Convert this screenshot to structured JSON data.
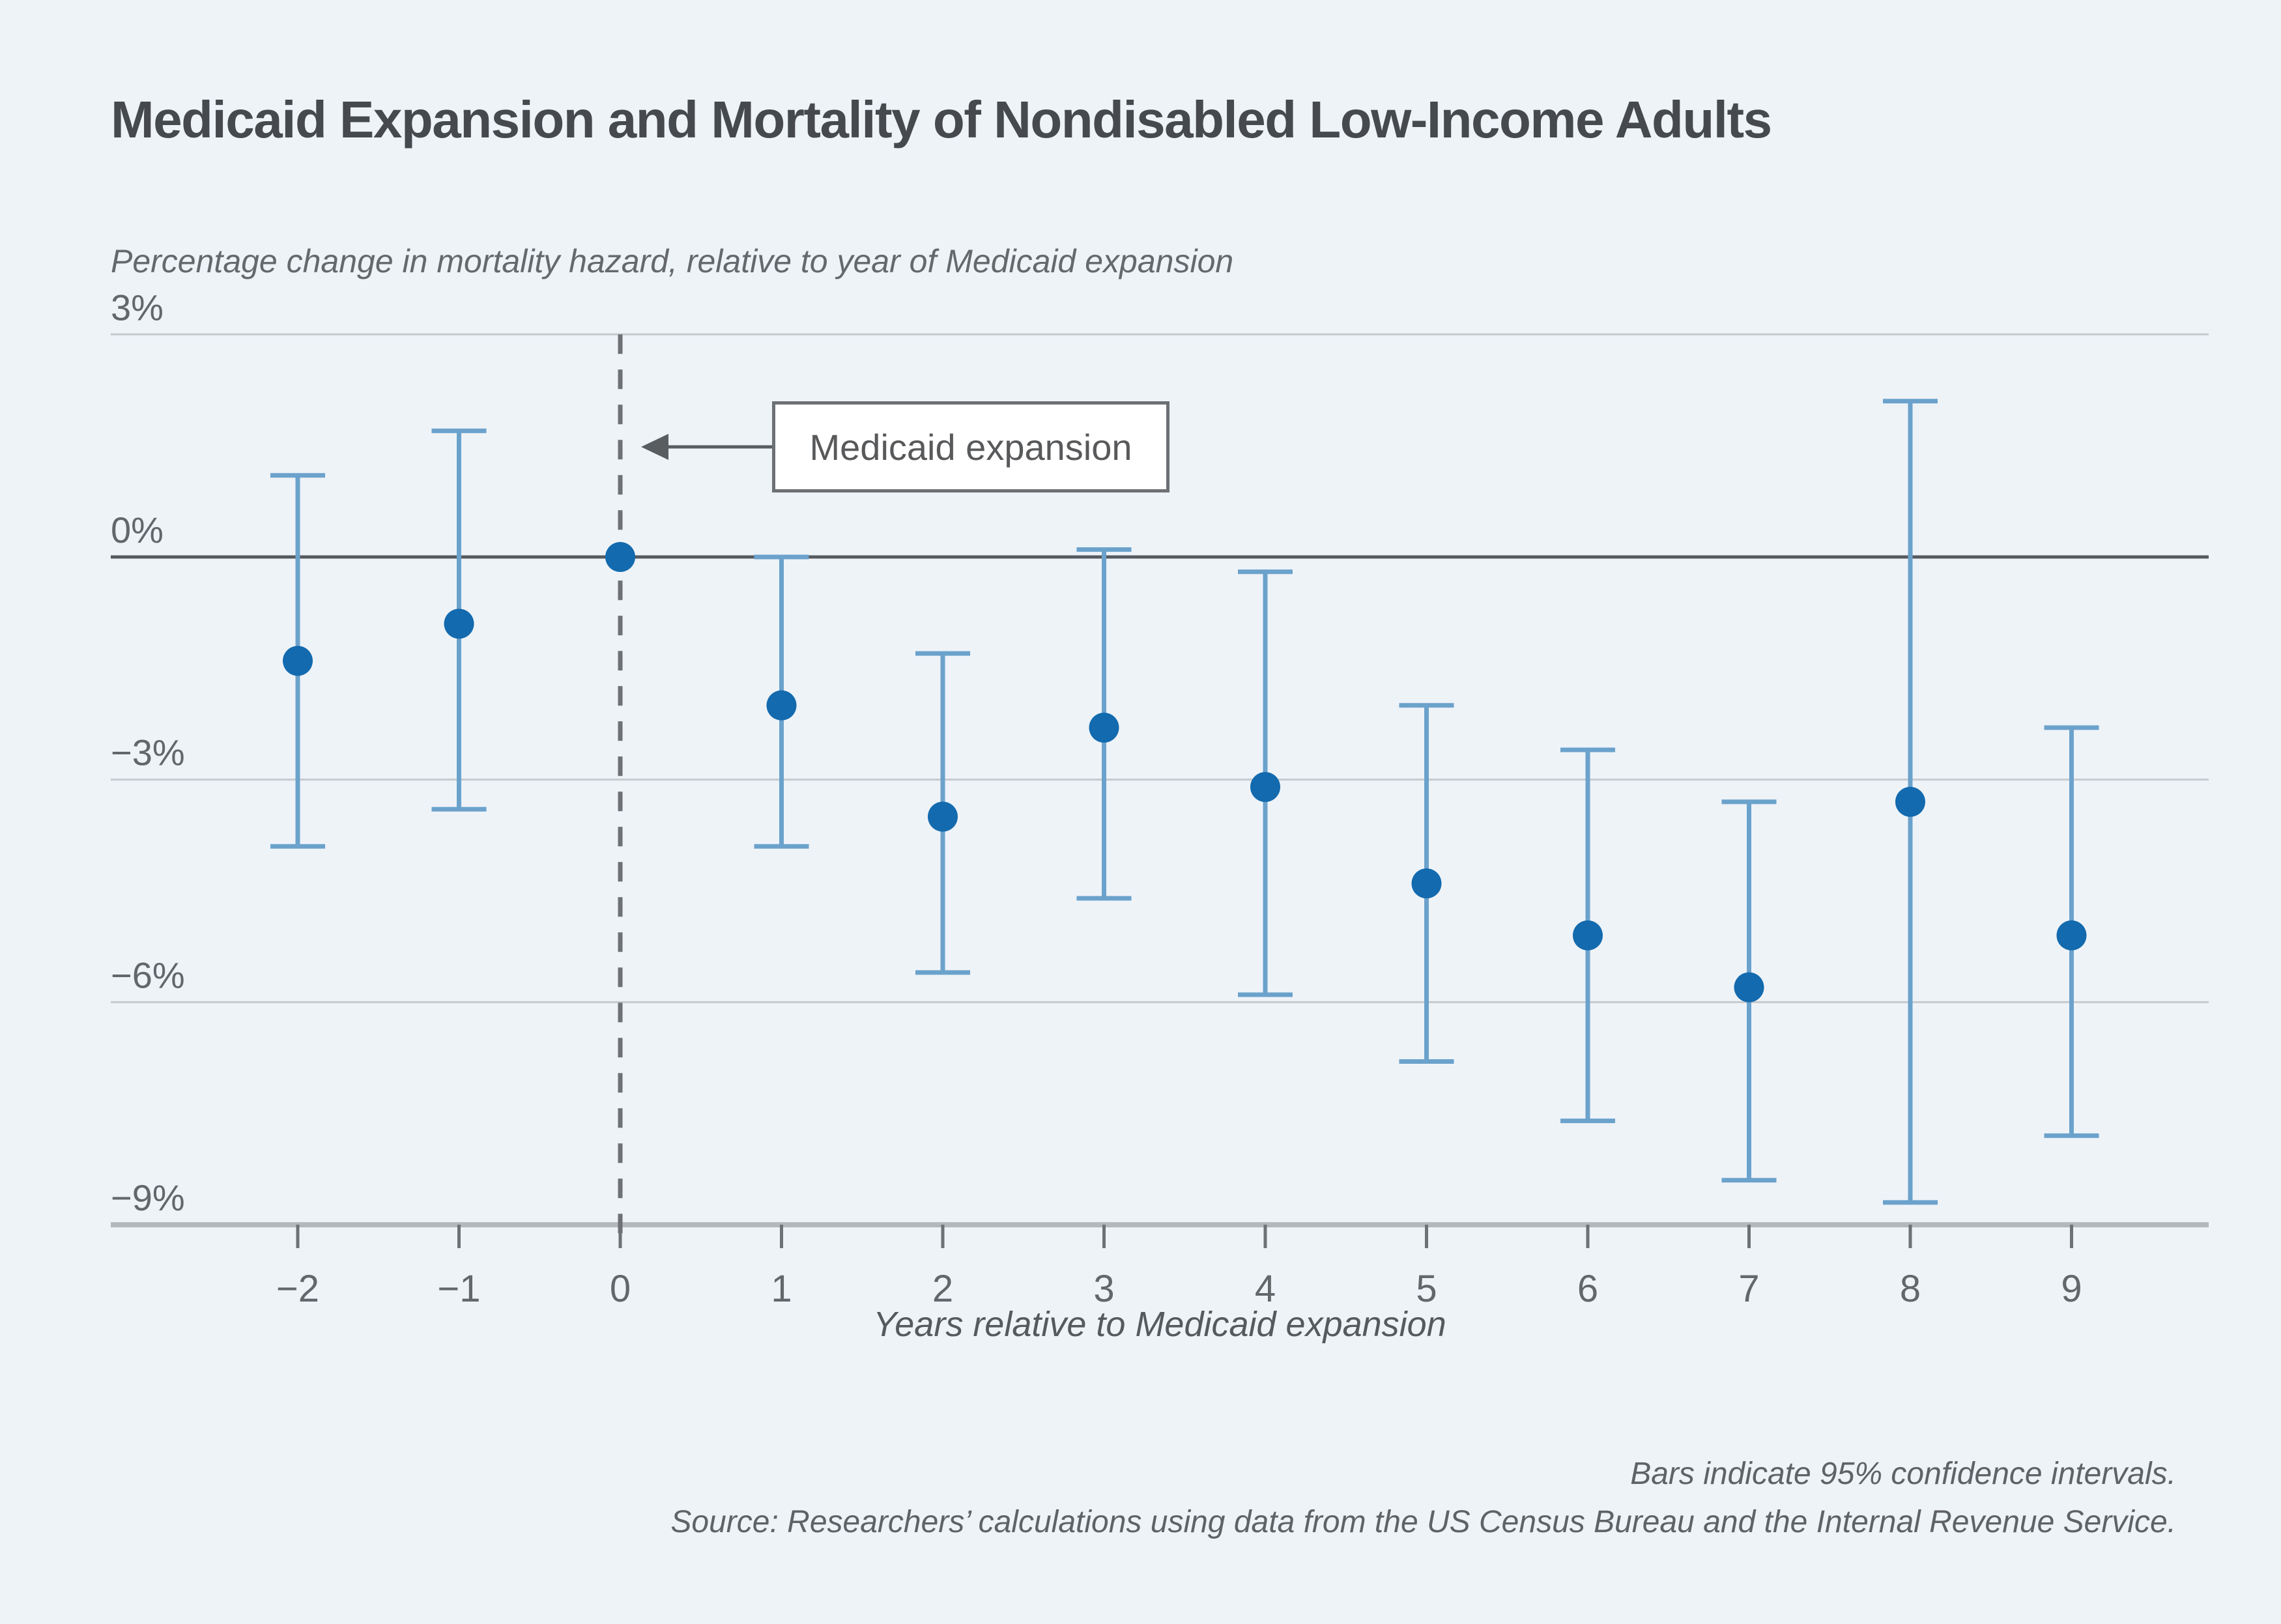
{
  "header": {
    "title": "Medicaid Expansion and Mortality of Nondisabled Low-Income Adults"
  },
  "footer": {
    "note": "Bars indicate 95% confidence intervals.",
    "source": "Source: Researchers’ calculations using data from the US Census Bureau and the Internal Revenue Service."
  },
  "colors": {
    "background": "#eef3f8",
    "point_blue": "#136aae",
    "interval_blue": "#6ba2cc",
    "gridline_gray": "#c7cacd",
    "zero_line_gray": "#56595d",
    "axis_gray": "#b4b8bc",
    "tick_gray": "#6e7175",
    "arrow_gray": "#595d60",
    "text_dark": "#46494d",
    "text_gray": "#63666a"
  },
  "chart_data": {
    "type": "scatter",
    "title": "Medicaid Expansion and Mortality of Nondisabled Low-Income Adults",
    "ylabel": "Percentage change in mortality hazard, relative to year of Medicaid expansion",
    "xlabel": "Years relative to Medicaid expansion",
    "x": [
      -2,
      -1,
      0,
      1,
      2,
      3,
      4,
      5,
      6,
      7,
      8,
      9
    ],
    "estimates_pct": [
      -1.4,
      -0.9,
      0.0,
      -2.0,
      -3.5,
      -2.3,
      -3.1,
      -4.4,
      -5.1,
      -5.8,
      -3.3,
      -5.1
    ],
    "ci_low_pct": [
      -3.9,
      -3.4,
      null,
      -3.9,
      -5.6,
      -4.6,
      -5.9,
      -6.8,
      -7.6,
      -8.4,
      -8.7,
      -7.8
    ],
    "ci_high_pct": [
      1.1,
      1.7,
      null,
      0.0,
      -1.3,
      0.1,
      -0.2,
      -2.0,
      -2.6,
      -3.3,
      2.1,
      -2.3
    ],
    "reference_year": 0,
    "yticks": [
      {
        "value": 3,
        "label": "3%"
      },
      {
        "value": 0,
        "label": "0%"
      },
      {
        "value": -3,
        "label": "−3%"
      },
      {
        "value": -6,
        "label": "−6%"
      },
      {
        "value": -9,
        "label": "−9%"
      }
    ],
    "ylim": [
      -9.3,
      3
    ],
    "grid": "horizontal",
    "legend": "none",
    "annotation": {
      "label": "Medicaid expansion",
      "arrow_points_to_x": 0
    },
    "ci_note": "Bars indicate 95% confidence intervals."
  }
}
